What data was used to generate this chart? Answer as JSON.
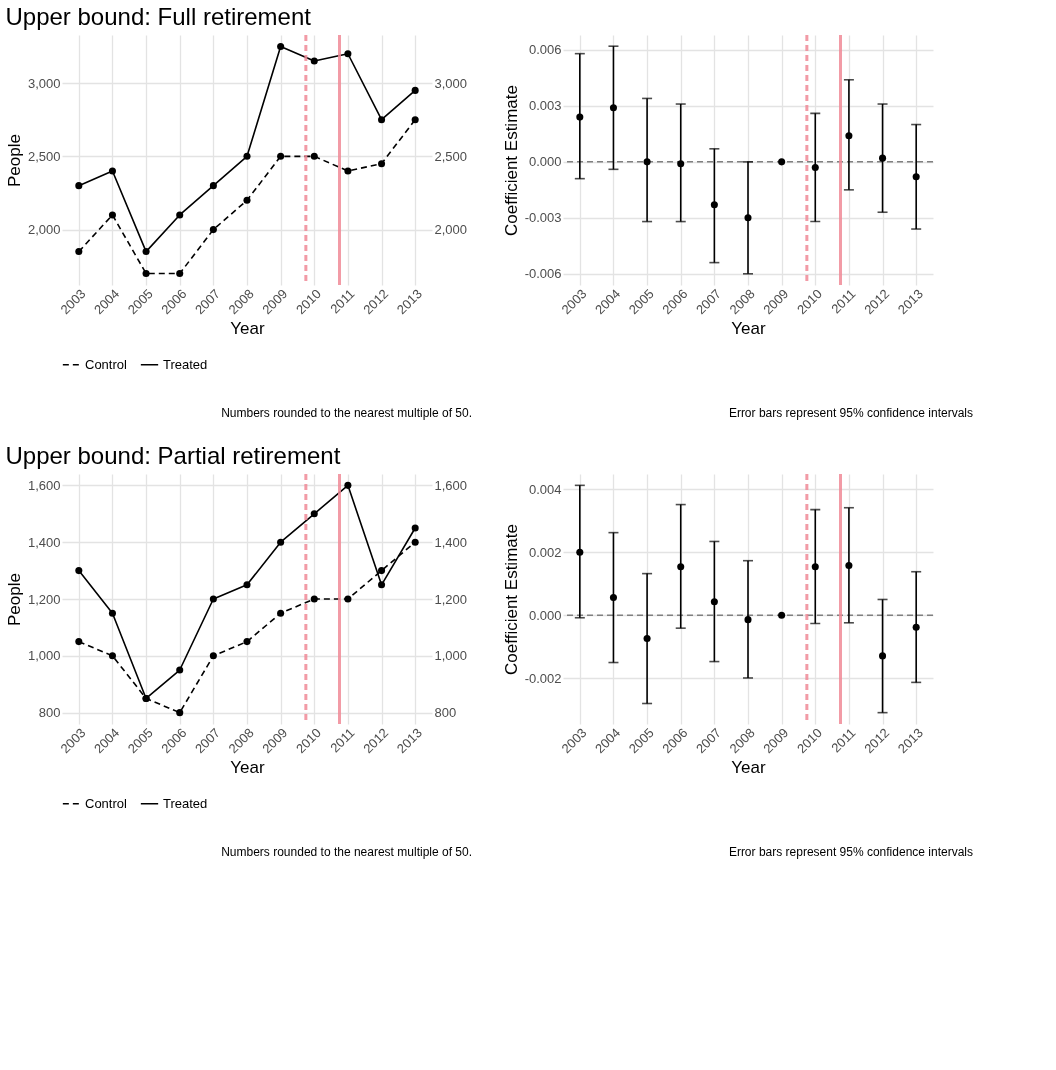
{
  "chart_data": [
    {
      "type": "line",
      "title": "Upper bound: Full retirement",
      "xlabel": "Year",
      "ylabel": "People",
      "x": [
        2003,
        2004,
        2005,
        2006,
        2007,
        2008,
        2009,
        2010,
        2011,
        2012,
        2013
      ],
      "xlim": [
        2002.5,
        2013.5
      ],
      "xticks": [
        2003,
        2004,
        2005,
        2006,
        2007,
        2008,
        2009,
        2010,
        2011,
        2012,
        2013
      ],
      "ylim": [
        1622,
        3328
      ],
      "yticks": [
        {
          "value": 2000,
          "label": "2,000"
        },
        {
          "value": 2500,
          "label": "2,500"
        },
        {
          "value": 3000,
          "label": "3,000"
        }
      ],
      "y2lim": [
        1622,
        3328
      ],
      "y2ticks": [
        {
          "value": 2000,
          "label": "2,000"
        },
        {
          "value": 2500,
          "label": "2,500"
        },
        {
          "value": 3000,
          "label": "3,000"
        }
      ],
      "grid": true,
      "legend": "bottom",
      "marker": "circle",
      "series": [
        {
          "name": "Control",
          "color": "#000000",
          "line_style": "dashed",
          "values": [
            1850,
            2100,
            1700,
            1700,
            2000,
            2200,
            2500,
            2500,
            2400,
            2450,
            2750
          ]
        },
        {
          "name": "Treated",
          "color": "#000000",
          "line_style": "solid",
          "values": [
            2300,
            2400,
            1850,
            2100,
            2300,
            2500,
            3250,
            3150,
            3200,
            2750,
            2950
          ]
        }
      ],
      "ref_lines": [
        {
          "axis": "x",
          "value": 2009.75,
          "color": "#f08a96",
          "line_style": "dashed"
        },
        {
          "axis": "x",
          "value": 2010.75,
          "color": "#f08a96",
          "line_style": "solid"
        }
      ],
      "annotations": [
        "Numbers rounded to the nearest multiple of 50."
      ]
    },
    {
      "type": "scatter",
      "xlabel": "Year",
      "ylabel": "Coefficient Estimate",
      "x": [
        2003,
        2004,
        2005,
        2006,
        2007,
        2008,
        2009,
        2010,
        2011,
        2012,
        2013
      ],
      "xlim": [
        2002.5,
        2013.5
      ],
      "xticks": [
        2003,
        2004,
        2005,
        2006,
        2007,
        2008,
        2009,
        2010,
        2011,
        2012,
        2013
      ],
      "ylim": [
        -0.0066,
        0.0068
      ],
      "yticks": [
        {
          "value": -0.006,
          "label": "-0.006"
        },
        {
          "value": -0.003,
          "label": "-0.003"
        },
        {
          "value": 0,
          "label": "0.000"
        },
        {
          "value": 0.003,
          "label": "0.003"
        },
        {
          "value": 0.006,
          "label": "0.006"
        }
      ],
      "grid": true,
      "marker": "circle",
      "color": "#000000",
      "values": [
        0.0024,
        0.0029,
        0.0,
        -0.0001,
        -0.0023,
        -0.003,
        0,
        -0.0003,
        0.0014,
        0.0002,
        -0.0008
      ],
      "errors": [
        [
          -0.0009,
          0.0058
        ],
        [
          -0.0004,
          0.0062
        ],
        [
          -0.0032,
          0.0034
        ],
        [
          -0.0032,
          0.0031
        ],
        [
          -0.0054,
          0.0007
        ],
        [
          -0.006,
          0.0
        ],
        null,
        [
          -0.0032,
          0.0026
        ],
        [
          -0.0015,
          0.0044
        ],
        [
          -0.0027,
          0.0031
        ],
        [
          -0.0036,
          0.002
        ]
      ],
      "ref_lines": [
        {
          "axis": "y",
          "value": 0,
          "color": "#808080",
          "line_style": "dashed"
        },
        {
          "axis": "x",
          "value": 2009.75,
          "color": "#f08a96",
          "line_style": "dashed"
        },
        {
          "axis": "x",
          "value": 2010.75,
          "color": "#f08a96",
          "line_style": "solid"
        }
      ],
      "annotations": [
        "Error bars represent 95% confidence intervals"
      ]
    },
    {
      "type": "line",
      "title": "Upper bound: Partial retirement",
      "xlabel": "Year",
      "ylabel": "People",
      "x": [
        2003,
        2004,
        2005,
        2006,
        2007,
        2008,
        2009,
        2010,
        2011,
        2012,
        2013
      ],
      "xlim": [
        2002.5,
        2013.5
      ],
      "xticks": [
        2003,
        2004,
        2005,
        2006,
        2007,
        2008,
        2009,
        2010,
        2011,
        2012,
        2013
      ],
      "ylim": [
        760,
        1640
      ],
      "yticks": [
        800,
        {
          "value": 1000,
          "label": "1,000"
        },
        {
          "value": 1200,
          "label": "1,200"
        },
        {
          "value": 1400,
          "label": "1,400"
        },
        {
          "value": 1600,
          "label": "1,600"
        }
      ],
      "y2lim": [
        760,
        1640
      ],
      "y2ticks": [
        800,
        {
          "value": 1000,
          "label": "1,000"
        },
        {
          "value": 1200,
          "label": "1,200"
        },
        {
          "value": 1400,
          "label": "1,400"
        },
        {
          "value": 1600,
          "label": "1,600"
        }
      ],
      "grid": true,
      "legend": "bottom",
      "marker": "circle",
      "series": [
        {
          "name": "Control",
          "color": "#000000",
          "line_style": "dashed",
          "values": [
            1050,
            1000,
            850,
            800,
            1000,
            1050,
            1150,
            1200,
            1200,
            1300,
            1400
          ]
        },
        {
          "name": "Treated",
          "color": "#000000",
          "line_style": "solid",
          "values": [
            1300,
            1150,
            850,
            950,
            1200,
            1250,
            1400,
            1500,
            1600,
            1250,
            1450
          ]
        }
      ],
      "ref_lines": [
        {
          "axis": "x",
          "value": 2009.75,
          "color": "#f08a96",
          "line_style": "dashed"
        },
        {
          "axis": "x",
          "value": 2010.75,
          "color": "#f08a96",
          "line_style": "solid"
        }
      ],
      "annotations": [
        "Numbers rounded to the nearest multiple of 50."
      ]
    },
    {
      "type": "scatter",
      "xlabel": "Year",
      "ylabel": "Coefficient Estimate",
      "x": [
        2003,
        2004,
        2005,
        2006,
        2007,
        2008,
        2009,
        2010,
        2011,
        2012,
        2013
      ],
      "xlim": [
        2002.5,
        2013.5
      ],
      "xticks": [
        2003,
        2004,
        2005,
        2006,
        2007,
        2008,
        2009,
        2010,
        2011,
        2012,
        2013
      ],
      "ylim": [
        -0.00345,
        0.00448
      ],
      "yticks": [
        {
          "value": -0.002,
          "label": "-0.002"
        },
        {
          "value": 0,
          "label": "0.000"
        },
        {
          "value": 0.002,
          "label": "0.002"
        },
        {
          "value": 0.004,
          "label": "0.004"
        }
      ],
      "grid": true,
      "marker": "circle",
      "color": "#000000",
      "values": [
        0.002,
        0.00056,
        -0.00074,
        0.00154,
        0.00043,
        -0.00014,
        0,
        0.00154,
        0.00158,
        -0.00129,
        -0.00038
      ],
      "errors": [
        [
          -8e-05,
          0.00412
        ],
        [
          -0.0015,
          0.00262
        ],
        [
          -0.0028,
          0.00132
        ],
        [
          -0.00041,
          0.00351
        ],
        [
          -0.00147,
          0.00234
        ],
        [
          -0.00199,
          0.00173
        ],
        null,
        [
          -0.00026,
          0.00335
        ],
        [
          -0.00024,
          0.00341
        ],
        [
          -0.00309,
          0.0005
        ],
        [
          -0.00213,
          0.00138
        ]
      ],
      "ref_lines": [
        {
          "axis": "y",
          "value": 0,
          "color": "#808080",
          "line_style": "dashed"
        },
        {
          "axis": "x",
          "value": 2009.75,
          "color": "#f08a96",
          "line_style": "dashed"
        },
        {
          "axis": "x",
          "value": 2010.75,
          "color": "#f08a96",
          "line_style": "solid"
        }
      ],
      "annotations": [
        "Error bars represent 95% confidence intervals"
      ]
    }
  ]
}
